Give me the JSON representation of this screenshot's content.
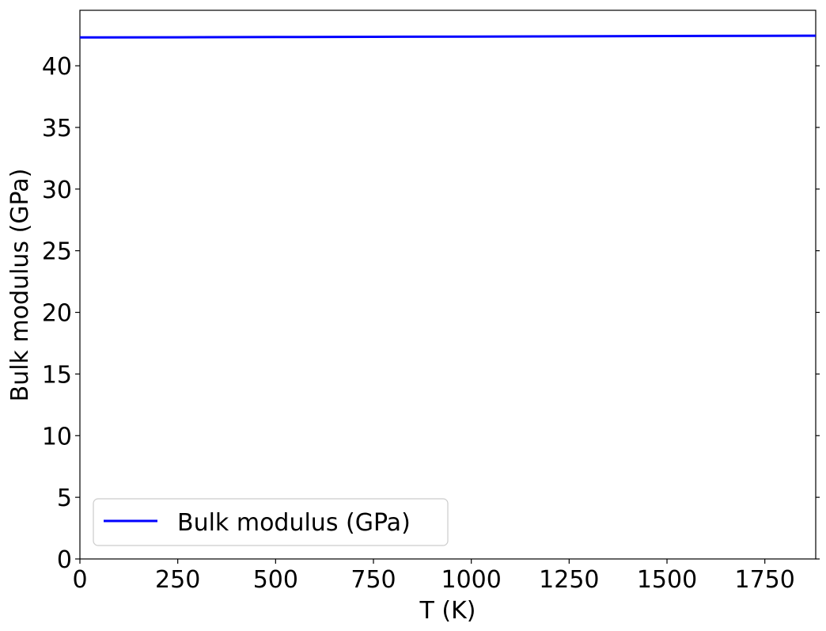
{
  "chart_data": {
    "type": "line",
    "xlabel": "T (K)",
    "ylabel": "Bulk modulus (GPa)",
    "xlim": [
      0,
      1880
    ],
    "ylim": [
      0,
      44.5
    ],
    "xticks": [
      0,
      250,
      500,
      750,
      1000,
      1250,
      1500,
      1750
    ],
    "yticks": [
      0,
      5,
      10,
      15,
      20,
      25,
      30,
      35,
      40
    ],
    "grid": false,
    "legend_position": "lower-left",
    "series": [
      {
        "name": "Bulk modulus (GPa)",
        "color": "#0000ff",
        "x": [
          0,
          250,
          500,
          750,
          1000,
          1250,
          1500,
          1750,
          1880
        ],
        "y": [
          42.3,
          42.31,
          42.33,
          42.35,
          42.37,
          42.39,
          42.41,
          42.43,
          42.44
        ]
      }
    ]
  }
}
